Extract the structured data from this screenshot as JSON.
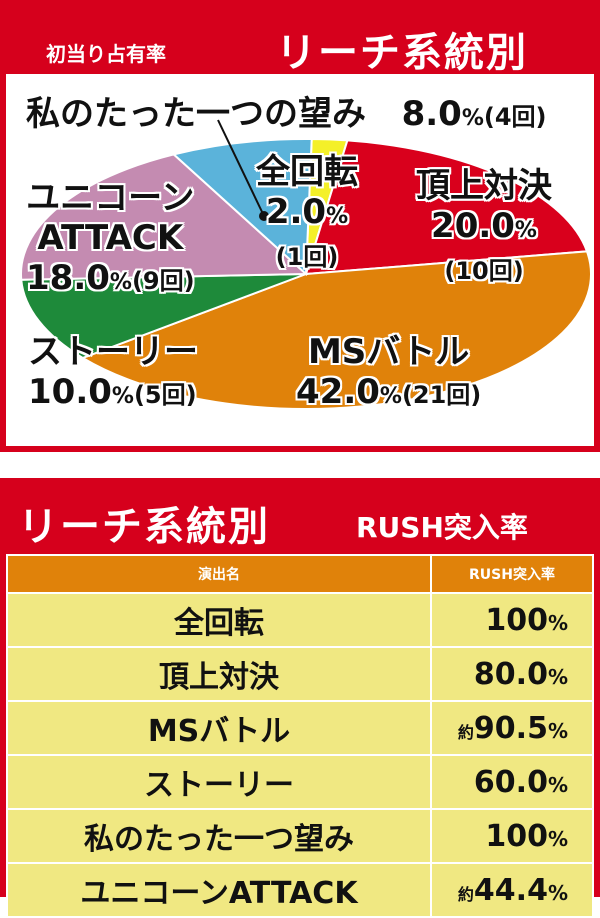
{
  "header": {
    "small_title": "初当り占有率",
    "title": "リーチ系統別"
  },
  "chart_data": {
    "type": "pie",
    "slices": [
      {
        "name": "全回転",
        "value": 2.0,
        "pct_text": "2.0",
        "count_text": "(1回)",
        "color": "#f4f029"
      },
      {
        "name": "頂上対決",
        "value": 20.0,
        "pct_text": "20.0",
        "count_text": "(10回)",
        "color": "#d9001c"
      },
      {
        "name": "MSバトル",
        "value": 42.0,
        "pct_text": "42.0",
        "count_text": "(21回)",
        "color": "#e0820a"
      },
      {
        "name": "ストーリー",
        "value": 10.0,
        "pct_text": "10.0",
        "count_text": "(5回)",
        "color": "#1e8a3a"
      },
      {
        "name": "ユニコーンATTACK",
        "value": 18.0,
        "pct_text": "18.0",
        "count_text": "(9回)",
        "color": "#c48bb1"
      },
      {
        "name": "私のたった一つの望み",
        "value": 8.0,
        "pct_text": "8.0",
        "count_text": "(4回)",
        "color": "#5bb3da"
      }
    ],
    "labels": {
      "zenkaiten_name": "全回転",
      "choujou_name": "頂上対決",
      "ms_name": "MSバトル",
      "story_name": "ストーリー",
      "unicorn_name_1": "ユニコーン",
      "unicorn_name_2": "ATTACK",
      "nozomi_name": "私のたった一つの望み"
    },
    "percent_unit": "%"
  },
  "table": {
    "title": "リーチ系統別",
    "subtitle": "RUSH突入率",
    "headers": [
      "演出名",
      "RUSH突入率"
    ],
    "approx_label": "約",
    "rows": [
      {
        "name": "全回転",
        "approx": "",
        "value": "100",
        "unit": "%"
      },
      {
        "name": "頂上対決",
        "approx": "",
        "value": "80.0",
        "unit": "%"
      },
      {
        "name": "MSバトル",
        "approx": "約",
        "value": "90.5",
        "unit": "%"
      },
      {
        "name": "ストーリー",
        "approx": "",
        "value": "60.0",
        "unit": "%"
      },
      {
        "name": "私のたった一つ望み",
        "approx": "",
        "value": "100",
        "unit": "%"
      },
      {
        "name": "ユニコーンATTACK",
        "approx": "約",
        "value": "44.4",
        "unit": "%"
      }
    ]
  }
}
